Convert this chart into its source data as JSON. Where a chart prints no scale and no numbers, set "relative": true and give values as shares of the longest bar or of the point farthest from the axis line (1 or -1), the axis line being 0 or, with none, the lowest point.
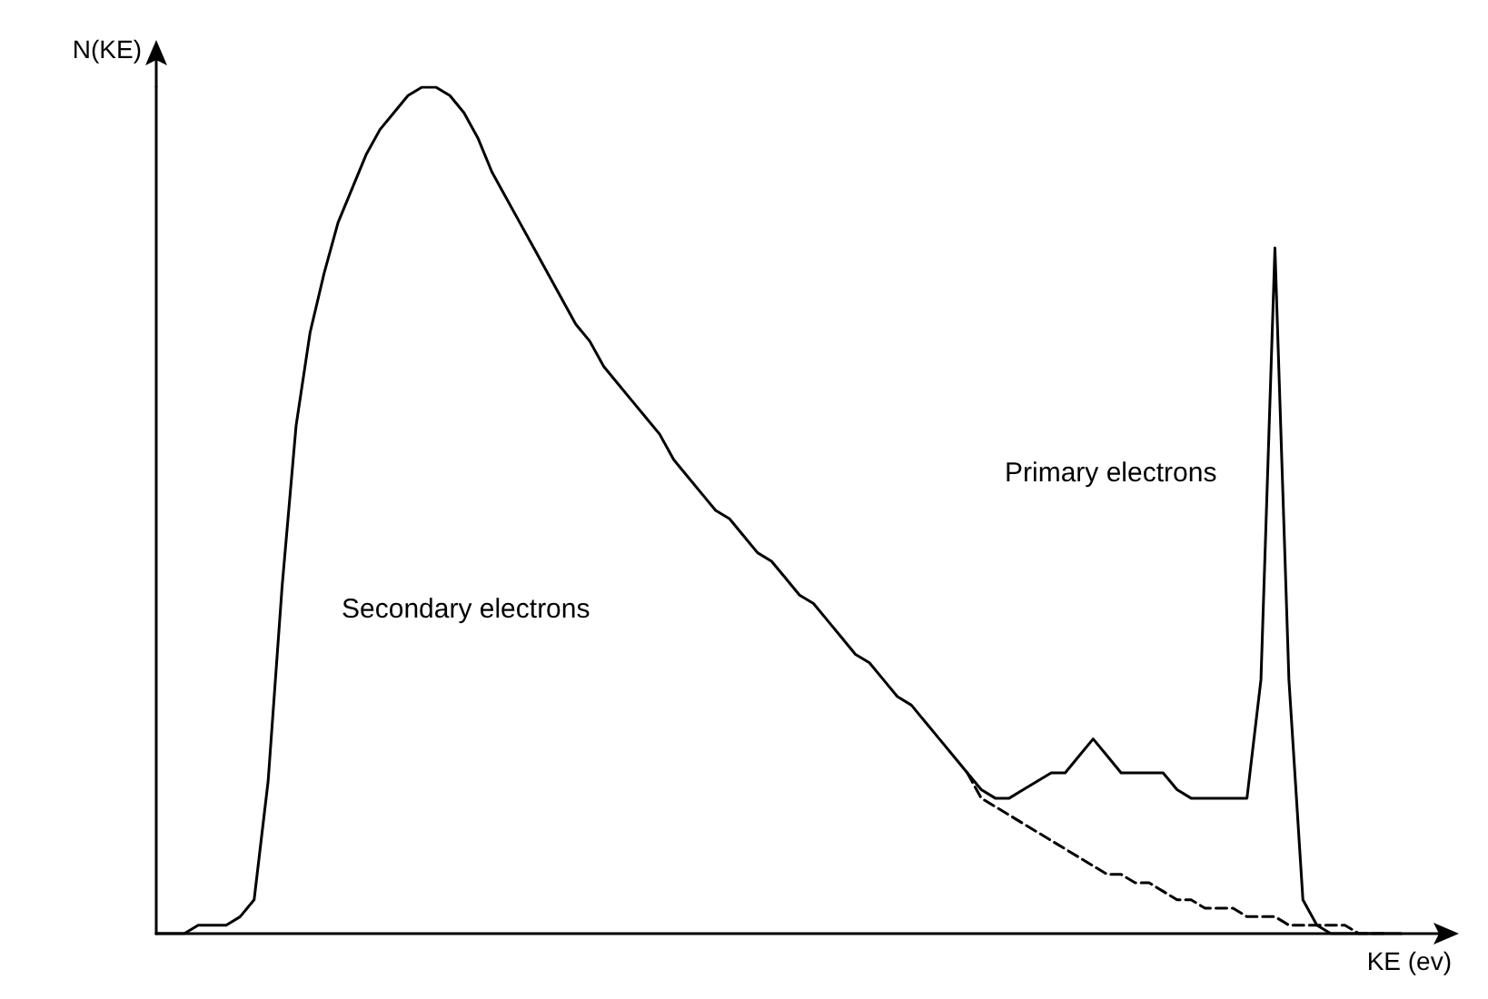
{
  "chart_data": {
    "type": "line",
    "relative": true,
    "xlabel": "KE (ev)",
    "ylabel": "N(KE)",
    "grid": false,
    "marker": "none",
    "categories": [
      null,
      null,
      null,
      null,
      null,
      null,
      null,
      null,
      null,
      null,
      null,
      null,
      null,
      null,
      null,
      null,
      null,
      null,
      null,
      null,
      null,
      null,
      null,
      null,
      null,
      null,
      null,
      null,
      null,
      null,
      null,
      null,
      null,
      null,
      null,
      null,
      null,
      null,
      null,
      null,
      null,
      null,
      null,
      null,
      null,
      null,
      null,
      null,
      null,
      null,
      null,
      null,
      null,
      null,
      null,
      null,
      null,
      null,
      null,
      null,
      null,
      null,
      null,
      null,
      null,
      null,
      null,
      null,
      null,
      null,
      null,
      null,
      null,
      null,
      null,
      null,
      null,
      null,
      null,
      null,
      null,
      null,
      null,
      null,
      null,
      null,
      null,
      null,
      null,
      null
    ],
    "series": [
      {
        "color": "#000000",
        "line_style": "solid",
        "values": [
          0.0,
          0.0,
          0.0,
          0.01,
          0.01,
          0.01,
          0.02,
          0.04,
          0.18,
          0.41,
          0.6,
          0.71,
          0.78,
          0.84,
          0.88,
          0.92,
          0.95,
          0.97,
          0.99,
          1.0,
          1.0,
          0.99,
          0.97,
          0.94,
          0.9,
          0.87,
          0.84,
          0.81,
          0.78,
          0.75,
          0.72,
          0.7,
          0.67,
          0.65,
          0.63,
          0.61,
          0.59,
          0.56,
          0.54,
          0.52,
          0.5,
          0.49,
          0.47,
          0.45,
          0.44,
          0.42,
          0.4,
          0.39,
          0.37,
          0.35,
          0.33,
          0.32,
          0.3,
          0.28,
          0.27,
          0.25,
          0.23,
          0.21,
          0.19,
          0.17,
          0.16,
          0.16,
          0.17,
          0.18,
          0.19,
          0.19,
          0.21,
          0.23,
          0.21,
          0.19,
          0.19,
          0.19,
          0.19,
          0.17,
          0.16,
          0.16,
          0.16,
          0.16,
          0.16,
          0.3,
          0.81,
          0.3,
          0.04,
          0.01,
          0.0,
          0.0,
          0.0,
          0.0,
          0.0,
          0.0
        ]
      },
      {
        "color": "#000000",
        "line_style": "dashed",
        "values": [
          null,
          null,
          null,
          null,
          null,
          null,
          null,
          null,
          null,
          null,
          null,
          null,
          null,
          null,
          null,
          null,
          null,
          null,
          null,
          null,
          null,
          null,
          null,
          null,
          null,
          null,
          null,
          null,
          null,
          null,
          null,
          null,
          null,
          null,
          null,
          null,
          null,
          null,
          null,
          null,
          null,
          null,
          null,
          null,
          null,
          null,
          null,
          null,
          null,
          null,
          null,
          null,
          null,
          null,
          null,
          null,
          null,
          null,
          0.19,
          0.16,
          0.15,
          0.14,
          0.13,
          0.12,
          0.11,
          0.1,
          0.09,
          0.08,
          0.07,
          0.07,
          0.06,
          0.06,
          0.05,
          0.04,
          0.04,
          0.03,
          0.03,
          0.03,
          0.02,
          0.02,
          0.02,
          0.01,
          0.01,
          0.01,
          0.01,
          0.01,
          0.0,
          0.0,
          0.0,
          null
        ]
      }
    ],
    "annotations": [
      "Secondary electrons",
      "Primary electrons"
    ]
  }
}
